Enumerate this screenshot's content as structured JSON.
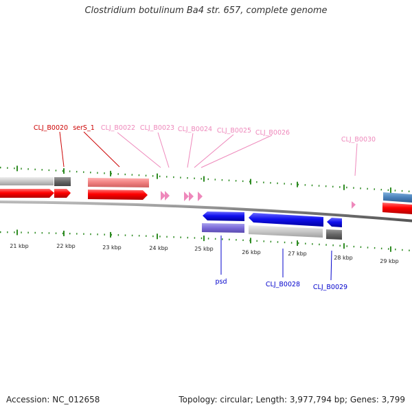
{
  "header": {
    "title": "Clostridium botulinum Ba4 str. 657, complete genome"
  },
  "footer": {
    "accession": "Accession: NC_012658",
    "summary": "Topology: circular; Length: 3,977,794 bp; Genes: 3,799"
  },
  "colors": {
    "forward_cds": "#ff0000",
    "reverse_cds": "#0000ee",
    "label_dark_red": "#cc0000",
    "label_pink": "#ee88bb",
    "label_blue": "#0000cc",
    "tick_green": "#2e8b22",
    "backbone": "#888888"
  },
  "tracks": {
    "ruler_labels": [
      "21 kbp",
      "22 kbp",
      "23 kbp",
      "24 kbp",
      "25 kbp",
      "26 kbp",
      "27 kbp",
      "28 kbp",
      "29 kbp"
    ]
  },
  "gene_labels_top": [
    {
      "id": "l1",
      "text": "CLJ_B0020",
      "color": "#cc0000"
    },
    {
      "id": "l2",
      "text": "serS_1",
      "color": "#cc0000"
    },
    {
      "id": "l3",
      "text": "CLJ_B0022",
      "color": "#ee88bb"
    },
    {
      "id": "l4",
      "text": "CLJ_B0023",
      "color": "#ee88bb"
    },
    {
      "id": "l5",
      "text": "CLJ_B0024",
      "color": "#ee88bb"
    },
    {
      "id": "l6",
      "text": "CLJ_B0025",
      "color": "#ee88bb"
    },
    {
      "id": "l7",
      "text": "CLJ_B0026",
      "color": "#ee88bb"
    },
    {
      "id": "l8",
      "text": "CLJ_B0030",
      "color": "#ee88bb"
    }
  ],
  "gene_labels_bottom": [
    {
      "id": "b1",
      "text": "psd",
      "color": "#0000cc"
    },
    {
      "id": "b2",
      "text": "CLJ_B0028",
      "color": "#0000cc"
    },
    {
      "id": "b3",
      "text": "CLJ_B0029",
      "color": "#0000cc"
    }
  ]
}
